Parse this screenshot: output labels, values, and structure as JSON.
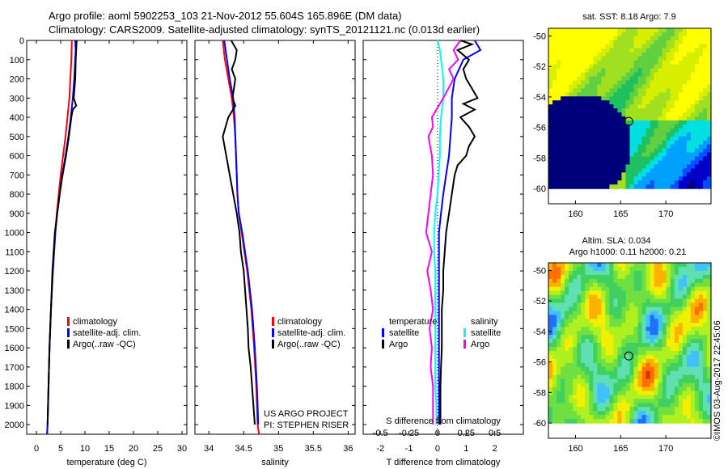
{
  "header": {
    "line1": "Argo profile: aoml 5902253_103 21-Nov-2012 55.604S 165.896E (DM data)",
    "line2": "Climatology: CARS2009. Satellite-adjusted climatology: synTS_20121121.nc (0.013d earlier)"
  },
  "footer": {
    "watermark": "©IMOS 03-Aug-2017 22:45:06",
    "project": "US ARGO PROJECT",
    "pi": "PI: STEPHEN RISER"
  },
  "colors": {
    "climatology": "#ff0000",
    "satellite": "#0000ff",
    "argo": "#000000",
    "salinity_satellite": "#00ffff",
    "salinity_argo": "#ff00ff"
  },
  "chart_data": [
    {
      "type": "line",
      "xlabel": "temperature (deg C)",
      "ylabel": "",
      "xlim": [
        -2,
        31
      ],
      "ylim": [
        2050,
        0
      ],
      "xticks": [
        0,
        5,
        10,
        15,
        20,
        25,
        30
      ],
      "yticks": [
        0,
        100,
        200,
        300,
        400,
        500,
        600,
        700,
        800,
        900,
        1000,
        1100,
        1200,
        1300,
        1400,
        1500,
        1600,
        1700,
        1800,
        1900,
        2000
      ],
      "legend": [
        "climatology",
        "satellite-adj. clim.",
        "Argo(..raw -QC)"
      ],
      "series": [
        {
          "name": "climatology",
          "depth": [
            0,
            100,
            200,
            300,
            400,
            500,
            600,
            700,
            800,
            900,
            1000,
            1200,
            1400,
            1600,
            1800,
            2000,
            2050
          ],
          "values": [
            7.3,
            7.2,
            7.0,
            6.8,
            6.4,
            6.0,
            5.5,
            5.0,
            4.6,
            4.2,
            3.9,
            3.4,
            3.0,
            2.7,
            2.5,
            2.3,
            2.2
          ]
        },
        {
          "name": "satellite-adj. clim.",
          "depth": [
            0,
            50,
            100,
            200,
            300,
            400,
            500,
            600,
            700,
            800,
            900,
            1000,
            1200,
            1400,
            1600,
            1800,
            2000,
            2050
          ],
          "values": [
            8.0,
            8.1,
            8.0,
            7.8,
            7.5,
            7.1,
            6.6,
            6.0,
            5.3,
            4.8,
            4.3,
            3.9,
            3.4,
            3.0,
            2.7,
            2.5,
            2.3,
            2.2
          ]
        },
        {
          "name": "Argo(..raw -QC)",
          "depth": [
            0,
            50,
            100,
            200,
            300,
            340,
            360,
            400,
            500,
            600,
            700,
            800,
            900,
            1000,
            1200,
            1400,
            1600,
            1800,
            1900,
            2000
          ],
          "values": [
            8.3,
            8.2,
            8.1,
            8.0,
            7.7,
            8.2,
            7.5,
            7.2,
            6.7,
            6.1,
            5.4,
            4.8,
            4.3,
            3.8,
            3.3,
            3.0,
            2.7,
            2.5,
            2.4,
            2.3
          ]
        }
      ]
    },
    {
      "type": "line",
      "xlabel": "salinity",
      "ylabel": "",
      "xlim": [
        33.8,
        36.1
      ],
      "ylim": [
        2050,
        0
      ],
      "xticks": [
        34,
        34.5,
        35,
        35.5,
        36
      ],
      "legend": [
        "climatology",
        "satellite-adj. clim.",
        "Argo(..raw -QC)"
      ],
      "series": [
        {
          "name": "climatology",
          "depth": [
            0,
            100,
            200,
            300,
            400,
            500,
            600,
            700,
            800,
            900,
            1000,
            1200,
            1400,
            1600,
            1800,
            2000,
            2050
          ],
          "values": [
            34.2,
            34.23,
            34.28,
            34.33,
            34.36,
            34.38,
            34.39,
            34.4,
            34.41,
            34.43,
            34.47,
            34.55,
            34.61,
            34.65,
            34.68,
            34.7,
            34.72
          ]
        },
        {
          "name": "satellite-adj. clim.",
          "depth": [
            0,
            50,
            100,
            200,
            300,
            400,
            500,
            600,
            700,
            800,
            900,
            1000,
            1200,
            1400,
            1600,
            1800,
            2000
          ],
          "values": [
            34.22,
            34.24,
            34.26,
            34.3,
            34.35,
            34.37,
            34.38,
            34.39,
            34.4,
            34.41,
            34.43,
            34.48,
            34.56,
            34.62,
            34.66,
            34.69,
            34.71
          ]
        },
        {
          "name": "Argo(..raw -QC)",
          "depth": [
            0,
            50,
            100,
            150,
            200,
            300,
            340,
            400,
            500,
            600,
            700,
            800,
            900,
            1000,
            1100,
            1200,
            1300,
            1400,
            1500,
            1600,
            1700,
            1800,
            1900,
            2000
          ],
          "values": [
            34.32,
            34.4,
            34.38,
            34.33,
            34.38,
            34.34,
            34.38,
            34.28,
            34.2,
            34.25,
            34.3,
            34.35,
            34.4,
            34.44,
            34.46,
            34.5,
            34.52,
            34.54,
            34.56,
            34.57,
            34.6,
            34.62,
            34.64,
            34.66
          ]
        }
      ]
    },
    {
      "type": "line",
      "xlabel": "T difference from climatology",
      "xlabel_top": "S difference from climatology",
      "xlim_T": [
        -2.6,
        3.0
      ],
      "xticks_T": [
        -2,
        -1,
        0,
        1,
        2
      ],
      "xticks_S": [
        -0.5,
        -0.25,
        0,
        0.25,
        0.5
      ],
      "ylim": [
        2050,
        0
      ],
      "legend_temperature": {
        "title": "temperature",
        "items": [
          "satellite",
          "Argo"
        ]
      },
      "legend_salinity": {
        "title": "salinity",
        "items": [
          "satellite",
          "Argo"
        ]
      },
      "series": [
        {
          "name": "temperature satellite",
          "depth": [
            0,
            50,
            100,
            200,
            300,
            400,
            500,
            600,
            700,
            800,
            900,
            1000,
            1200,
            1400,
            1600,
            1800,
            2000
          ],
          "values": [
            1.3,
            1.5,
            0.9,
            0.6,
            0.5,
            0.5,
            0.45,
            0.4,
            0.3,
            0.2,
            0.12,
            0.05,
            0.05,
            0.05,
            0.05,
            0.05,
            0.05
          ]
        },
        {
          "name": "temperature Argo",
          "depth": [
            0,
            20,
            50,
            100,
            150,
            200,
            250,
            300,
            330,
            360,
            400,
            450,
            500,
            550,
            600,
            650,
            700,
            800,
            900,
            1000,
            1100,
            1200,
            1300,
            1400,
            1500,
            1600,
            1700,
            1800,
            1900,
            2000
          ],
          "values": [
            0.8,
            1.2,
            0.7,
            1.1,
            0.9,
            1.0,
            1.2,
            1.4,
            0.9,
            1.3,
            0.8,
            1.1,
            1.3,
            1.1,
            1.0,
            0.7,
            0.6,
            0.5,
            0.4,
            0.3,
            0.25,
            0.2,
            0.2,
            0.15,
            0.15,
            0.15,
            0.12,
            0.1,
            0.1,
            0.1
          ]
        },
        {
          "name": "salinity satellite",
          "depth": [
            0,
            50,
            100,
            200,
            300,
            400,
            500,
            600,
            700,
            800,
            900,
            1000,
            1100,
            1200,
            1300,
            1400,
            1500,
            1600,
            1700,
            1800,
            1900,
            2000
          ],
          "values": [
            0.0,
            0.02,
            0.03,
            0.05,
            0.05,
            0.03,
            0.02,
            0.02,
            0.01,
            0.0,
            -0.02,
            -0.03,
            -0.03,
            -0.02,
            -0.02,
            -0.02,
            -0.02,
            -0.02,
            -0.02,
            -0.02,
            -0.01,
            -0.01
          ]
        },
        {
          "name": "salinity Argo",
          "depth": [
            0,
            50,
            100,
            150,
            200,
            300,
            350,
            400,
            450,
            500,
            600,
            700,
            800,
            900,
            1000,
            1100,
            1200,
            1300,
            1400,
            1500,
            1600,
            1700,
            1800,
            1900,
            2000
          ],
          "values": [
            0.2,
            0.14,
            0.18,
            0.1,
            0.14,
            0.05,
            0.0,
            -0.05,
            -0.04,
            -0.08,
            -0.05,
            -0.04,
            -0.06,
            -0.08,
            -0.1,
            -0.05,
            -0.09,
            -0.06,
            -0.04,
            -0.07,
            -0.05,
            -0.06,
            -0.04,
            -0.04,
            -0.04
          ]
        }
      ]
    },
    {
      "type": "heatmap",
      "title": "sat. SST: 8.18 Argo: 7.9",
      "xlim": [
        157,
        175
      ],
      "ylim": [
        -61,
        -49.5
      ],
      "xticks": [
        160,
        165,
        170
      ],
      "yticks": [
        -50,
        -52,
        -54,
        -56,
        -58,
        -60
      ],
      "data_extent": [
        157,
        175,
        -60,
        -49.5
      ],
      "marker": {
        "lon": 165.896,
        "lat": -55.604
      }
    },
    {
      "type": "heatmap",
      "title": "Altim. SLA: 0.034",
      "subtitle": "Argo h1000: 0.11 h2000: 0.21",
      "xlim": [
        157,
        175
      ],
      "ylim": [
        -61,
        -49.5
      ],
      "xticks": [
        160,
        165,
        170
      ],
      "yticks": [
        -50,
        -52,
        -54,
        -56,
        -58,
        -60
      ],
      "data_extent": [
        157,
        175,
        -60,
        -49.5
      ],
      "marker": {
        "lon": 165.896,
        "lat": -55.604
      }
    }
  ]
}
